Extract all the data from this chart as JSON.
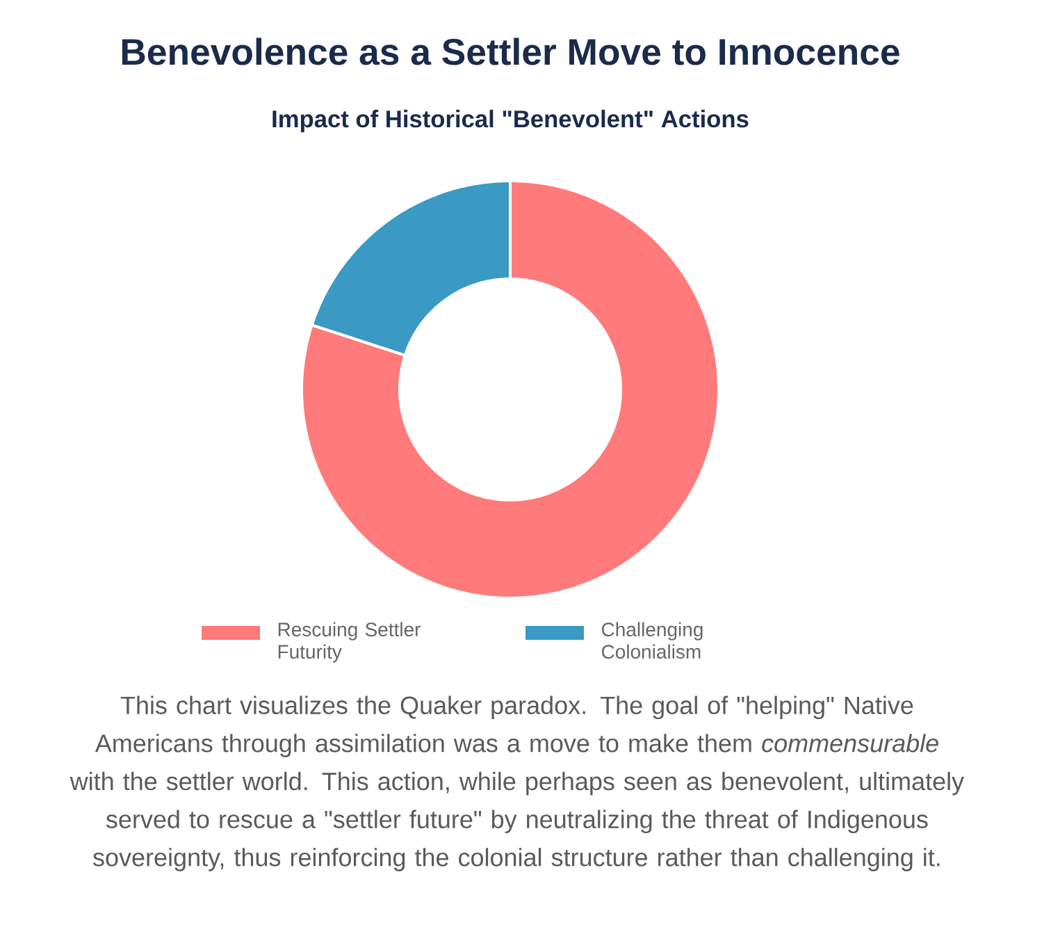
{
  "chart_data": {
    "type": "donut",
    "title": "Benevolence as a Settler Move to Innocence",
    "subtitle": "Impact of Historical \"Benevolent\" Actions",
    "categories": [
      "Rescuing Settler Futurity",
      "Challenging Colonialism"
    ],
    "values": [
      80,
      20
    ],
    "colors": [
      "#ff7a7a",
      "#3a9ac4"
    ],
    "legend": "bottom",
    "annotations": [
      "This chart visualizes the Quaker paradox. The goal of \"helping\" Native Americans through assimilation was a move to make them *commensurable* with the settler world. This action, while perhaps seen as benevolent, ultimately served to rescue a \"settler future\" by neutralizing the threat of Indigenous sovereignty, thus reinforcing the colonial structure rather than challenging it."
    ]
  }
}
